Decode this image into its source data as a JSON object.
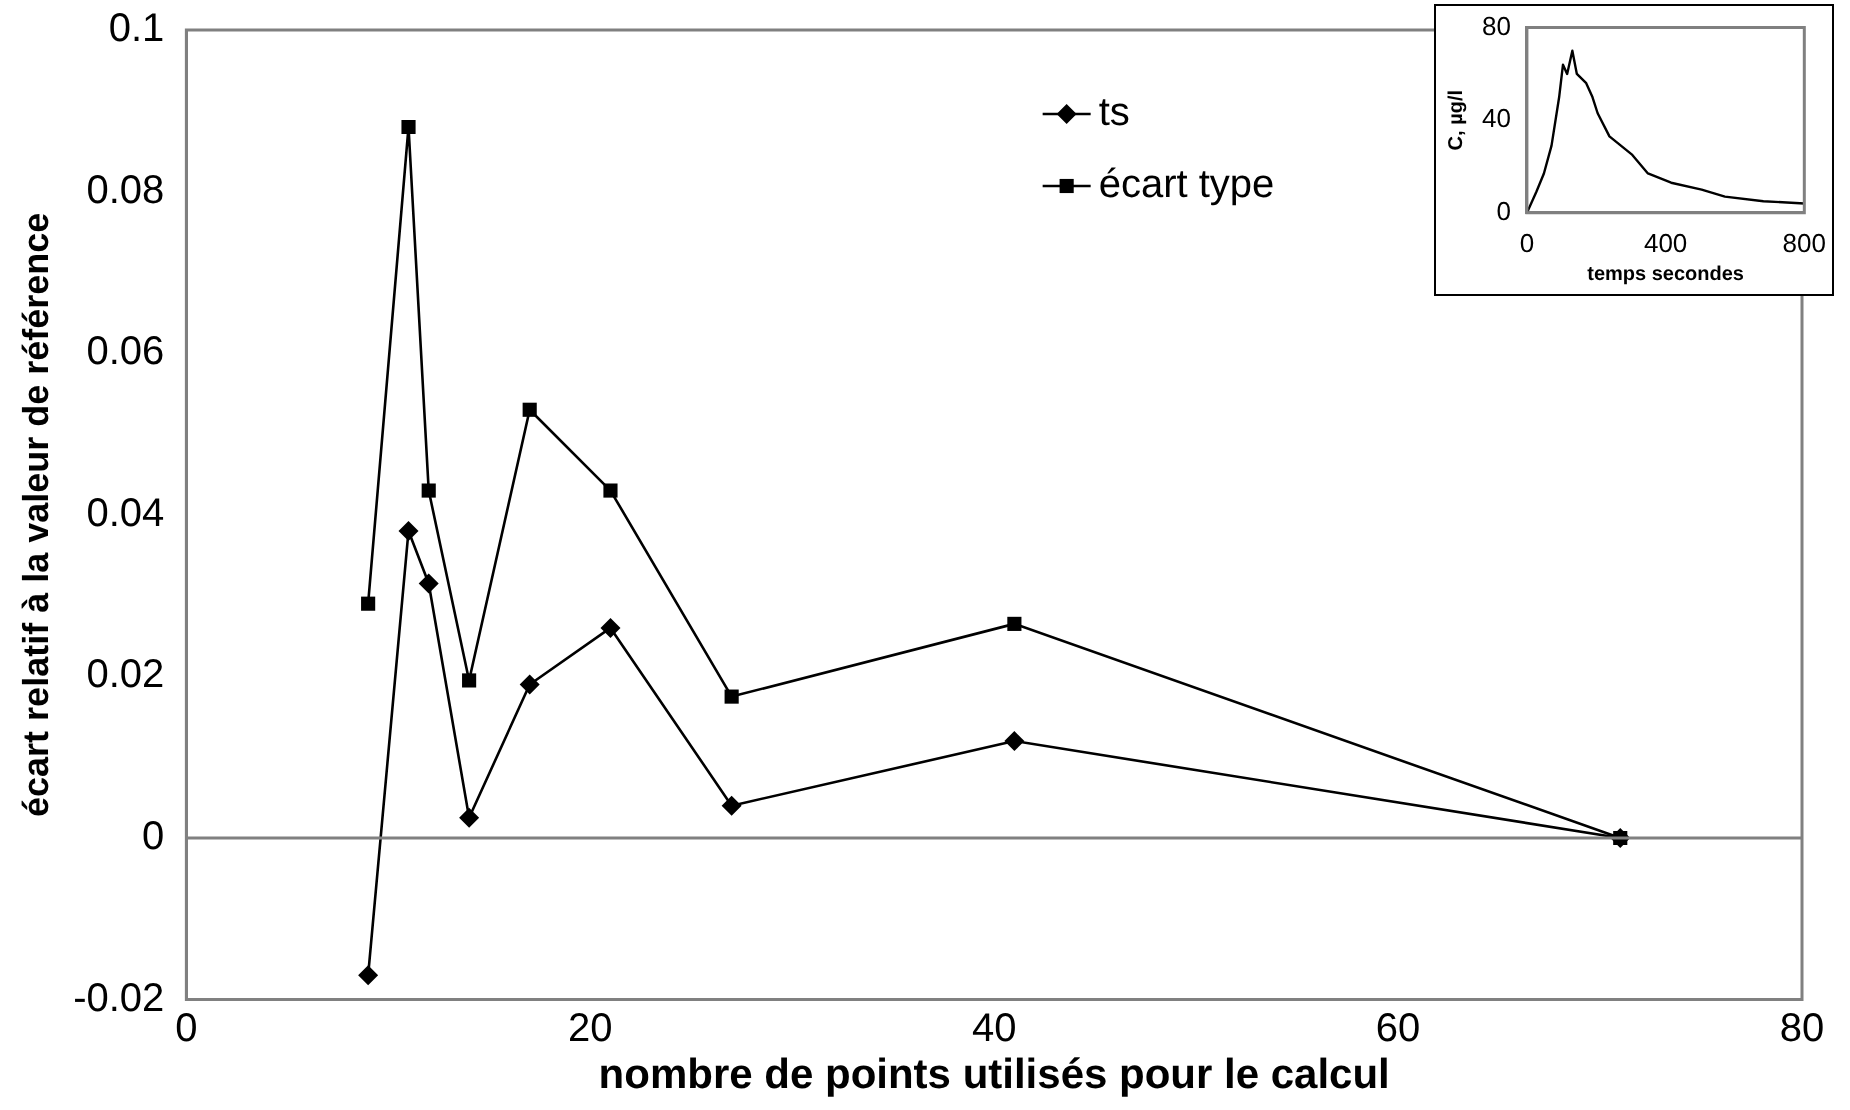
{
  "chart_data": [
    {
      "type": "line",
      "xlabel": "nombre de points utilisés pour le calcul",
      "ylabel": "écart relatif à la valeur de référence",
      "x": [
        9,
        11,
        12,
        14,
        17,
        21,
        27,
        41,
        71
      ],
      "series": [
        {
          "name": "ts",
          "color": "#000000",
          "marker": "diamond",
          "values": [
            -0.017,
            0.038,
            0.0315,
            0.0025,
            0.019,
            0.026,
            0.004,
            0.012,
            0
          ]
        },
        {
          "name": "écart type",
          "color": "#000000",
          "marker": "square",
          "values": [
            0.029,
            0.088,
            0.043,
            0.0195,
            0.053,
            0.043,
            0.0175,
            0.0265,
            0
          ]
        }
      ],
      "xlim": [
        0,
        80
      ],
      "xticks": [
        0,
        20,
        40,
        60,
        80
      ],
      "ylim": [
        -0.02,
        0.1
      ],
      "yticks": [
        {
          "value": -0.02,
          "label": "-0.02"
        },
        0,
        0.02,
        0.04,
        0.06,
        0.08,
        0.1
      ],
      "ref_lines": [
        {
          "axis": "y",
          "value": 0,
          "color": "#808080"
        }
      ],
      "legend": "top",
      "line_style": "solid"
    },
    {
      "type": "line",
      "xlabel": "temps secondes",
      "ylabel": "C, µg/l",
      "x": [
        0,
        27,
        49,
        71,
        93,
        104,
        116,
        131,
        144,
        171,
        189,
        204,
        238,
        304,
        349,
        416,
        504,
        571,
        682,
        800
      ],
      "series": [
        {
          "color": "#000000",
          "values": [
            0,
            9,
            17,
            29,
            50,
            64,
            60,
            70,
            60,
            56,
            50,
            43,
            33,
            25,
            17,
            13,
            10,
            7,
            5,
            4
          ]
        }
      ],
      "xlim": [
        0,
        800
      ],
      "xticks": [
        0,
        400,
        800
      ],
      "ylim": [
        0,
        80
      ],
      "yticks": [
        0,
        40,
        80
      ],
      "marker": "none",
      "legend": false,
      "line_style": "solid"
    }
  ]
}
